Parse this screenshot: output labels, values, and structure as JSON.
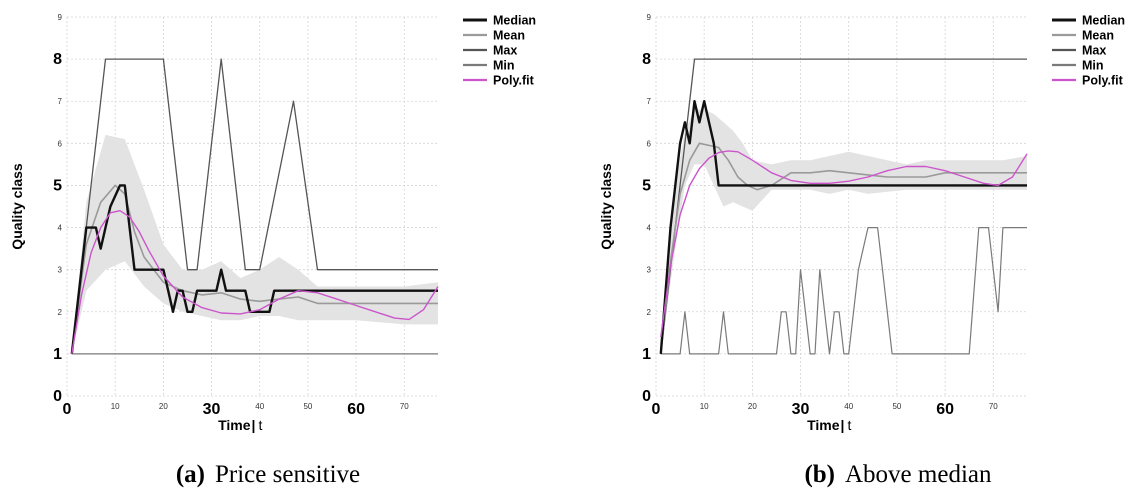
{
  "chart_data": [
    {
      "type": "line",
      "caption_letter": "(a)",
      "caption": "Price sensitive",
      "xlabel_main": "Time",
      "xlabel_unit": "t",
      "ylabel": "Quality class",
      "xlim": [
        0,
        77
      ],
      "ylim": [
        0,
        9
      ],
      "x_ticks": [
        0,
        10,
        20,
        30,
        40,
        50,
        60,
        70
      ],
      "y_ticks": [
        0,
        1,
        2,
        3,
        4,
        5,
        6,
        7,
        8,
        9
      ],
      "grid": true,
      "legend_position": "top-right, outside plot",
      "legend": [
        "Median",
        "Mean",
        "Max",
        "Min",
        "Poly.fit"
      ],
      "colors": {
        "Median": "#111111",
        "Mean": "#9a9a9a",
        "Max": "#555555",
        "Min": "#7a7a7a",
        "Poly.fit": "#cc55cc",
        "band": "#e3e3e3"
      },
      "band": {
        "x": [
          1,
          4,
          8,
          12,
          16,
          20,
          24,
          28,
          32,
          36,
          40,
          44,
          48,
          52,
          60,
          70,
          77
        ],
        "lower": [
          1,
          2.5,
          3.0,
          3.2,
          2.6,
          2.2,
          2.0,
          1.9,
          1.8,
          1.8,
          1.9,
          1.9,
          1.8,
          1.8,
          1.8,
          1.7,
          1.7
        ],
        "upper": [
          1,
          4.6,
          6.2,
          6.1,
          4.9,
          3.6,
          3.0,
          3.0,
          3.2,
          2.8,
          3.0,
          3.3,
          3.0,
          2.6,
          2.6,
          2.6,
          2.7
        ]
      },
      "series": [
        {
          "name": "Max",
          "x": [
            1,
            8,
            20,
            25,
            27,
            32,
            37,
            40,
            47,
            52,
            77
          ],
          "values": [
            1,
            8,
            8,
            3,
            3,
            8,
            3,
            3,
            7,
            3,
            3
          ]
        },
        {
          "name": "Min",
          "x": [
            1,
            77
          ],
          "values": [
            1,
            1
          ]
        },
        {
          "name": "Mean",
          "x": [
            1,
            4,
            7,
            10,
            12,
            14,
            16,
            18,
            20,
            24,
            28,
            32,
            36,
            40,
            44,
            48,
            52,
            77
          ],
          "values": [
            1,
            3.6,
            4.6,
            5.0,
            4.8,
            3.9,
            3.3,
            3.0,
            2.7,
            2.5,
            2.4,
            2.45,
            2.3,
            2.25,
            2.3,
            2.35,
            2.2,
            2.2
          ]
        },
        {
          "name": "Median",
          "x": [
            1,
            4,
            6,
            7,
            8,
            9,
            11,
            12,
            13,
            14,
            20,
            21,
            22,
            23,
            24,
            25,
            26,
            27,
            28,
            31,
            32,
            33,
            37,
            38,
            42,
            43,
            51,
            52,
            77
          ],
          "values": [
            1,
            4,
            4,
            3.5,
            4,
            4.5,
            5,
            5,
            4,
            3,
            3,
            2.5,
            2,
            2.5,
            2.5,
            2,
            2,
            2.5,
            2.5,
            2.5,
            3,
            2.5,
            2.5,
            2,
            2,
            2.5,
            2.5,
            2.5,
            2.5
          ]
        },
        {
          "name": "Poly.fit",
          "x": [
            1,
            3,
            5,
            7,
            9,
            11,
            13,
            15,
            17,
            20,
            24,
            28,
            32,
            36,
            40,
            44,
            48,
            52,
            56,
            60,
            64,
            68,
            71,
            74,
            77
          ],
          "values": [
            1,
            2.4,
            3.4,
            4.0,
            4.35,
            4.4,
            4.25,
            3.9,
            3.45,
            2.85,
            2.35,
            2.1,
            1.97,
            1.95,
            2.05,
            2.3,
            2.5,
            2.45,
            2.3,
            2.15,
            2.0,
            1.85,
            1.82,
            2.05,
            2.6
          ]
        }
      ]
    },
    {
      "type": "line",
      "caption_letter": "(b)",
      "caption": "Above median",
      "xlabel_main": "Time",
      "xlabel_unit": "t",
      "ylabel": "Quality class",
      "xlim": [
        0,
        77
      ],
      "ylim": [
        0,
        9
      ],
      "x_ticks": [
        0,
        10,
        20,
        30,
        40,
        50,
        60,
        70
      ],
      "y_ticks": [
        0,
        1,
        2,
        3,
        4,
        5,
        6,
        7,
        8,
        9
      ],
      "grid": true,
      "legend_position": "top-right, outside plot",
      "legend": [
        "Median",
        "Mean",
        "Max",
        "Min",
        "Poly.fit"
      ],
      "colors": {
        "Median": "#111111",
        "Mean": "#9a9a9a",
        "Max": "#555555",
        "Min": "#7a7a7a",
        "Poly.fit": "#cc55cc",
        "band": "#e3e3e3"
      },
      "band": {
        "x": [
          1,
          4,
          6,
          8,
          10,
          12,
          14,
          16,
          18,
          20,
          24,
          28,
          32,
          36,
          40,
          44,
          48,
          52,
          56,
          60,
          66,
          72,
          77
        ],
        "lower": [
          1,
          3.5,
          5.0,
          5.5,
          5.5,
          5.0,
          4.5,
          4.6,
          4.5,
          4.4,
          4.9,
          4.9,
          4.9,
          4.8,
          4.9,
          4.8,
          4.85,
          4.9,
          4.9,
          4.9,
          4.9,
          4.9,
          4.9
        ],
        "upper": [
          1,
          5.0,
          6.3,
          6.8,
          6.8,
          6.7,
          6.5,
          6.3,
          6.0,
          5.6,
          5.5,
          5.6,
          5.6,
          5.7,
          5.8,
          5.7,
          5.6,
          5.5,
          5.6,
          5.6,
          5.6,
          5.6,
          5.7
        ]
      },
      "series": [
        {
          "name": "Max",
          "x": [
            1,
            8,
            77
          ],
          "values": [
            1,
            8,
            8
          ]
        },
        {
          "name": "Min",
          "x": [
            1,
            2,
            5,
            6,
            7,
            13,
            14,
            15,
            25,
            26,
            27,
            28,
            29,
            30,
            31,
            32,
            33,
            34,
            35,
            36,
            37,
            38,
            39,
            40,
            42,
            44,
            46,
            47,
            49,
            65,
            67,
            69,
            70,
            71,
            72,
            73,
            77
          ],
          "values": [
            1,
            1,
            1,
            2,
            1,
            1,
            2,
            1,
            1,
            2,
            2,
            1,
            1,
            3,
            2,
            1,
            1,
            3,
            2,
            1,
            2,
            2,
            1,
            1,
            3,
            4,
            4,
            3,
            1,
            1,
            4,
            4,
            3,
            2,
            4,
            4,
            4
          ]
        },
        {
          "name": "Mean",
          "x": [
            1,
            3,
            5,
            7,
            9,
            11,
            13,
            15,
            17,
            19,
            21,
            24,
            28,
            32,
            36,
            40,
            44,
            48,
            52,
            56,
            60,
            66,
            72,
            77
          ],
          "values": [
            1,
            3.2,
            4.8,
            5.6,
            6.0,
            5.95,
            5.9,
            5.6,
            5.2,
            5.0,
            4.9,
            5.0,
            5.3,
            5.3,
            5.35,
            5.3,
            5.25,
            5.2,
            5.2,
            5.2,
            5.3,
            5.3,
            5.3,
            5.3
          ]
        },
        {
          "name": "Median",
          "x": [
            1,
            3,
            5,
            6,
            7,
            8,
            9,
            10,
            11,
            12,
            13,
            77
          ],
          "values": [
            1,
            4,
            6,
            6.5,
            6,
            7,
            6.5,
            7,
            6.5,
            6,
            5,
            5
          ]
        },
        {
          "name": "Poly.fit",
          "x": [
            1,
            3,
            5,
            7,
            9,
            11,
            13,
            15,
            17,
            20,
            24,
            28,
            32,
            36,
            40,
            44,
            48,
            52,
            56,
            60,
            64,
            68,
            71,
            74,
            77
          ],
          "values": [
            1.4,
            3.1,
            4.3,
            5.0,
            5.4,
            5.65,
            5.78,
            5.82,
            5.8,
            5.6,
            5.3,
            5.12,
            5.05,
            5.05,
            5.1,
            5.2,
            5.35,
            5.45,
            5.45,
            5.35,
            5.2,
            5.05,
            5.0,
            5.2,
            5.75
          ]
        }
      ]
    }
  ]
}
